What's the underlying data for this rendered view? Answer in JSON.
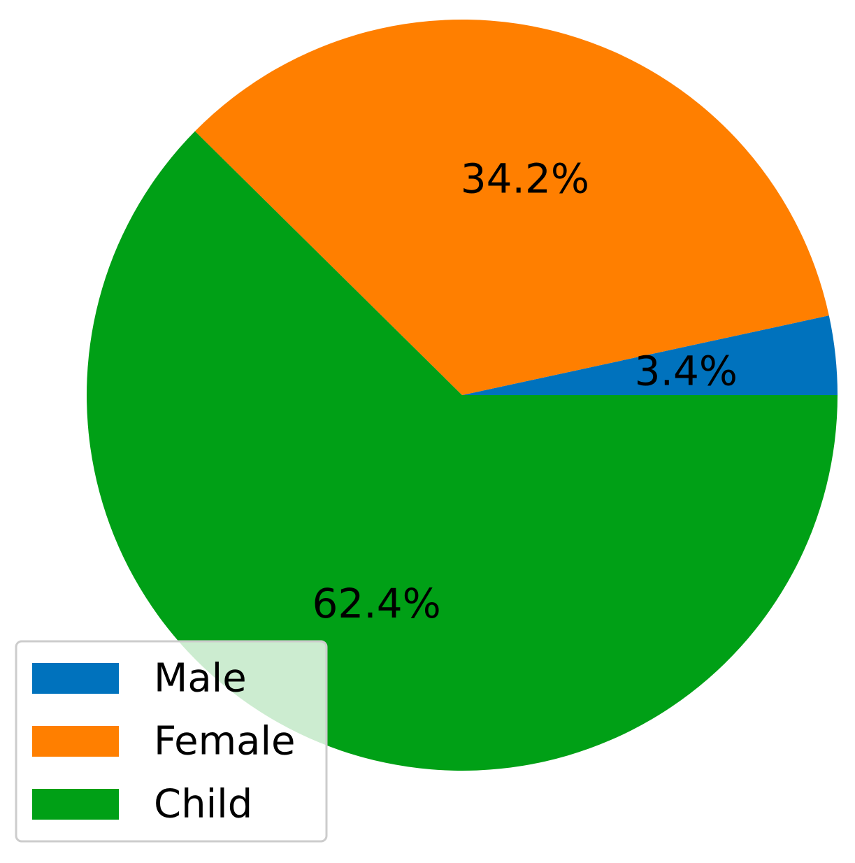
{
  "chart_data": {
    "type": "pie",
    "title": "",
    "slices": [
      {
        "label": "Male",
        "value": 3.4,
        "display": "3.4%",
        "color": "#0072bd"
      },
      {
        "label": "Female",
        "value": 34.2,
        "display": "34.2%",
        "color": "#ff7f00"
      },
      {
        "label": "Child",
        "value": 62.4,
        "display": "62.4%",
        "color": "#00a016"
      }
    ],
    "start_angle_deg": 0,
    "direction": "counterclockwise",
    "legend": {
      "placement": "lower-left",
      "entries": [
        "Male",
        "Female",
        "Child"
      ]
    }
  }
}
